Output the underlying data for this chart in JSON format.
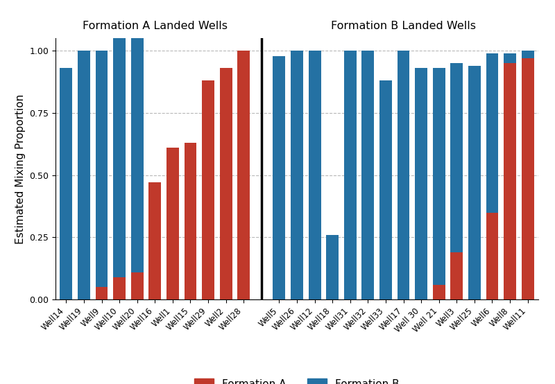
{
  "formation_a_wells": {
    "labels": [
      "Well14",
      "Well19",
      "Well9",
      "Well10",
      "Well20",
      "Well16",
      "Well1",
      "Well15",
      "Well29",
      "Well2",
      "Well28"
    ],
    "form_a": [
      0.0,
      0.0,
      0.05,
      0.09,
      0.11,
      0.47,
      0.61,
      0.63,
      0.88,
      0.93,
      1.0
    ],
    "form_b": [
      0.93,
      1.0,
      0.95,
      1.0,
      1.0,
      0.0,
      0.0,
      0.0,
      0.0,
      0.0,
      0.0
    ]
  },
  "formation_b_wells": {
    "labels": [
      "Well5",
      "Well26",
      "Well12",
      "Well18",
      "Well31",
      "Well32",
      "Well33",
      "Well17",
      "Well 30",
      "Well 21",
      "Well3",
      "Well25",
      "Well6",
      "Well8",
      "Well11"
    ],
    "form_a": [
      0.0,
      0.0,
      0.0,
      0.0,
      0.0,
      0.0,
      0.0,
      0.0,
      0.0,
      0.06,
      0.19,
      0.0,
      0.35,
      0.95,
      0.97
    ],
    "form_b": [
      0.98,
      1.0,
      1.0,
      0.26,
      1.0,
      1.0,
      0.88,
      1.0,
      0.93,
      0.87,
      0.76,
      0.94,
      0.64,
      0.04,
      0.03
    ]
  },
  "color_a": "#C0392B",
  "color_b": "#2471A3",
  "title_a": "Formation A Landed Wells",
  "title_b": "Formation B Landed Wells",
  "ylabel": "Estimated Mixing Proportion",
  "legend_a": "Formation A",
  "legend_b": "Formation B",
  "background_color": "#ffffff"
}
